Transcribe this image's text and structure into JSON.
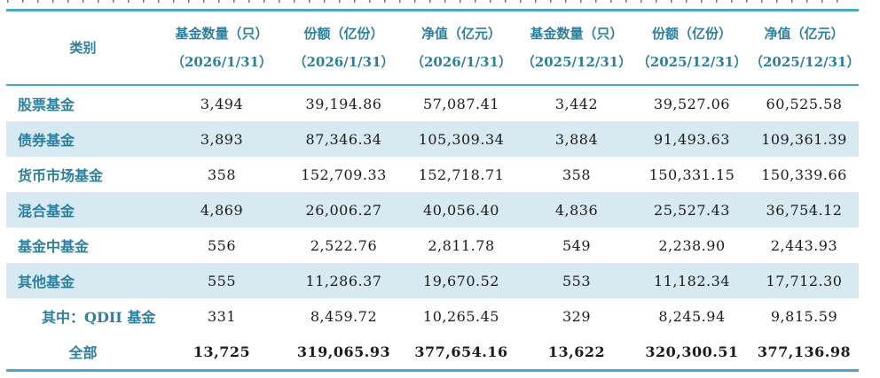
{
  "colors": {
    "accent_teal_text": "#2e7f9f",
    "rule_teal": "#4aa7c5",
    "stripe_blue": "#d8eaf1",
    "number_text": "#1c1c1c"
  },
  "table": {
    "columns": [
      {
        "label": "类别",
        "sub": ""
      },
      {
        "label": "基金数量（只）",
        "sub": "（2026/1/31）"
      },
      {
        "label": "份额（亿份）",
        "sub": "（2026/1/31）"
      },
      {
        "label": "净值（亿元）",
        "sub": "（2026/1/31）"
      },
      {
        "label": "基金数量（只）",
        "sub": "（2025/12/31）"
      },
      {
        "label": "份额（亿份）",
        "sub": "（2025/12/31）"
      },
      {
        "label": "净值（亿元）",
        "sub": "（2025/12/31）"
      }
    ],
    "rows": [
      {
        "category": "股票基金",
        "values": [
          "3,494",
          "39,194.86",
          "57,087.41",
          "3,442",
          "39,527.06",
          "60,525.58"
        ],
        "striped": false,
        "indent": false,
        "total": false
      },
      {
        "category": "债券基金",
        "values": [
          "3,893",
          "87,346.34",
          "105,309.34",
          "3,884",
          "91,493.63",
          "109,361.39"
        ],
        "striped": true,
        "indent": false,
        "total": false
      },
      {
        "category": "货币市场基金",
        "values": [
          "358",
          "152,709.33",
          "152,718.71",
          "358",
          "150,331.15",
          "150,339.66"
        ],
        "striped": false,
        "indent": false,
        "total": false
      },
      {
        "category": "混合基金",
        "values": [
          "4,869",
          "26,006.27",
          "40,056.40",
          "4,836",
          "25,527.43",
          "36,754.12"
        ],
        "striped": true,
        "indent": false,
        "total": false
      },
      {
        "category": "基金中基金",
        "values": [
          "556",
          "2,522.76",
          "2,811.78",
          "549",
          "2,238.90",
          "2,443.93"
        ],
        "striped": false,
        "indent": false,
        "total": false
      },
      {
        "category": "其他基金",
        "values": [
          "555",
          "11,286.37",
          "19,670.52",
          "553",
          "11,182.34",
          "17,712.30"
        ],
        "striped": true,
        "indent": false,
        "total": false
      },
      {
        "category": "其中：QDII 基金",
        "values": [
          "331",
          "8,459.72",
          "10,265.45",
          "329",
          "8,245.94",
          "9,815.59"
        ],
        "striped": false,
        "indent": true,
        "total": false
      },
      {
        "category": "全部",
        "values": [
          "13,725",
          "319,065.93",
          "377,654.16",
          "13,622",
          "320,300.51",
          "377,136.98"
        ],
        "striped": false,
        "indent": false,
        "total": true
      }
    ]
  }
}
